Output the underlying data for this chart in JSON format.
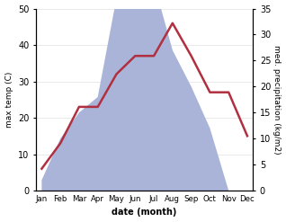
{
  "months": [
    "Jan",
    "Feb",
    "Mar",
    "Apr",
    "May",
    "Jun",
    "Jul",
    "Aug",
    "Sep",
    "Oct",
    "Nov",
    "Dec"
  ],
  "temperature": [
    6,
    13,
    23,
    23,
    32,
    37,
    37,
    46,
    37,
    27,
    27,
    15
  ],
  "precipitation_kg": [
    2,
    10,
    15,
    18,
    37,
    45,
    40,
    27,
    20,
    12,
    0,
    0
  ],
  "temp_color": "#b03040",
  "precip_color": "#aab4d8",
  "temp_ylim": [
    0,
    50
  ],
  "precip_ylim": [
    0,
    35
  ],
  "temp_yticks": [
    0,
    10,
    20,
    30,
    40,
    50
  ],
  "precip_yticks": [
    0,
    5,
    10,
    15,
    20,
    25,
    30,
    35
  ],
  "xlabel": "date (month)",
  "ylabel_left": "max temp (C)",
  "ylabel_right": "med. precipitation (kg/m2)",
  "background_color": "#ffffff"
}
